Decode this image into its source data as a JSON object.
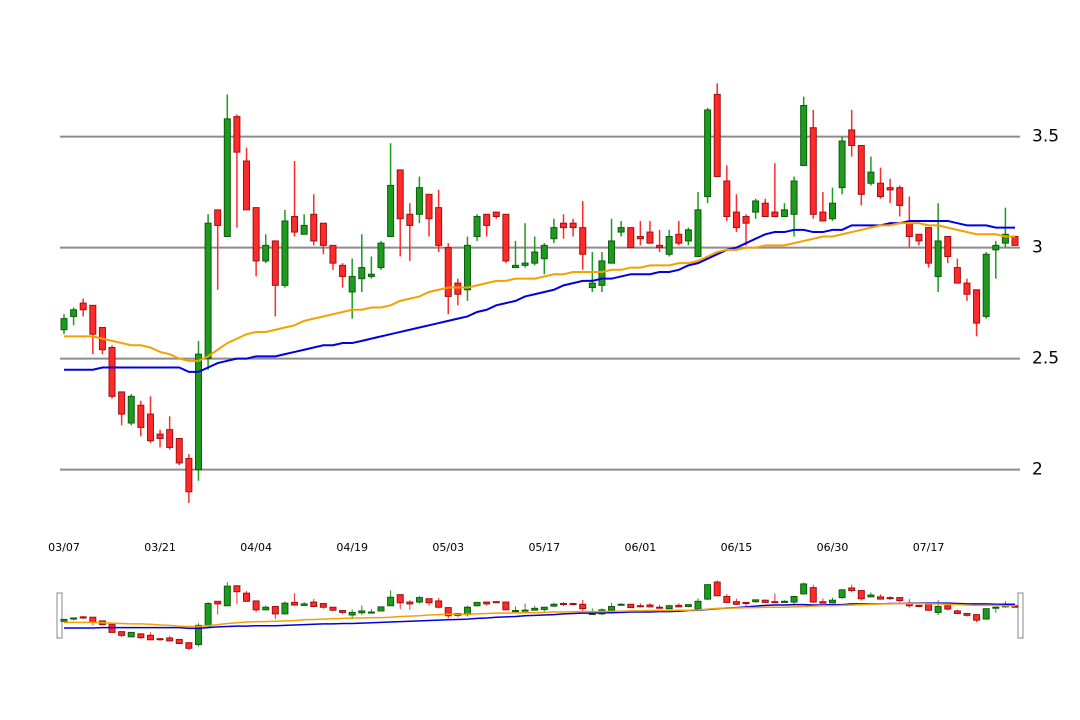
{
  "chart_data": {
    "type": "candlestick",
    "categories": [
      "03/07",
      null,
      null,
      null,
      null,
      null,
      null,
      null,
      null,
      null,
      "03/21",
      null,
      null,
      null,
      null,
      null,
      null,
      null,
      null,
      null,
      "04/04",
      null,
      null,
      null,
      null,
      null,
      null,
      null,
      null,
      null,
      "04/19",
      null,
      null,
      null,
      null,
      null,
      null,
      null,
      null,
      null,
      "05/03",
      null,
      null,
      null,
      null,
      null,
      null,
      null,
      null,
      null,
      "05/17",
      null,
      null,
      null,
      null,
      null,
      null,
      null,
      null,
      null,
      "06/01",
      null,
      null,
      null,
      null,
      null,
      null,
      null,
      null,
      null,
      "06/15",
      null,
      null,
      null,
      null,
      null,
      null,
      null,
      null,
      null,
      "06/30",
      null,
      null,
      null,
      null,
      null,
      null,
      null,
      null,
      null,
      "07/17",
      null,
      null,
      null,
      null,
      null,
      null,
      null,
      null,
      null
    ],
    "open": [
      2.63,
      2.69,
      2.75,
      2.74,
      2.64,
      2.55,
      2.35,
      2.21,
      2.29,
      2.25,
      2.16,
      2.18,
      2.14,
      2.05,
      2.0,
      2.5,
      3.17,
      3.05,
      3.59,
      3.39,
      3.18,
      2.94,
      3.03,
      2.83,
      3.14,
      3.06,
      3.15,
      3.11,
      3.01,
      2.92,
      2.8,
      2.86,
      2.87,
      2.91,
      3.05,
      3.35,
      3.15,
      3.15,
      3.24,
      3.18,
      3.0,
      2.84,
      2.81,
      3.05,
      3.15,
      3.16,
      3.15,
      2.91,
      2.92,
      2.93,
      2.95,
      3.04,
      3.11,
      3.11,
      3.09,
      2.82,
      2.83,
      2.93,
      3.07,
      3.09,
      3.05,
      3.07,
      3.01,
      2.97,
      3.06,
      3.03,
      2.96,
      3.23,
      3.69,
      3.3,
      3.16,
      3.14,
      3.16,
      3.2,
      3.16,
      3.14,
      3.15,
      3.37,
      3.54,
      3.16,
      3.13,
      3.27,
      3.53,
      3.46,
      3.29,
      3.29,
      3.27,
      3.27,
      3.11,
      3.06,
      3.09,
      2.87,
      3.05,
      2.91,
      2.84,
      2.81,
      2.69,
      2.99,
      3.02,
      3.05
    ],
    "high": [
      2.7,
      2.73,
      2.77,
      2.74,
      2.64,
      2.56,
      2.35,
      2.34,
      2.31,
      2.33,
      2.18,
      2.24,
      2.14,
      2.07,
      2.58,
      3.15,
      3.17,
      3.69,
      3.6,
      3.45,
      3.18,
      3.06,
      3.03,
      3.17,
      3.39,
      3.15,
      3.24,
      3.11,
      3.01,
      2.93,
      2.95,
      3.06,
      2.96,
      3.03,
      3.47,
      3.35,
      3.2,
      3.32,
      3.24,
      3.26,
      3.02,
      2.86,
      3.05,
      3.15,
      3.15,
      3.16,
      3.15,
      3.03,
      3.11,
      3.05,
      3.02,
      3.13,
      3.15,
      3.13,
      3.21,
      2.98,
      2.98,
      3.13,
      3.12,
      3.09,
      3.12,
      3.12,
      3.08,
      3.08,
      3.12,
      3.09,
      3.25,
      3.63,
      3.74,
      3.37,
      3.24,
      3.15,
      3.22,
      3.22,
      3.38,
      3.2,
      3.32,
      3.68,
      3.62,
      3.25,
      3.27,
      3.5,
      3.62,
      3.46,
      3.41,
      3.36,
      3.31,
      3.28,
      3.23,
      3.06,
      3.09,
      3.2,
      3.05,
      2.95,
      2.86,
      2.81,
      2.98,
      3.03,
      3.18,
      3.05
    ],
    "low": [
      2.61,
      2.65,
      2.69,
      2.52,
      2.52,
      2.32,
      2.2,
      2.2,
      2.15,
      2.12,
      2.1,
      2.09,
      2.02,
      1.85,
      1.95,
      2.45,
      2.81,
      3.05,
      3.09,
      3.17,
      2.87,
      2.93,
      2.69,
      2.82,
      3.05,
      3.06,
      3.01,
      2.97,
      2.9,
      2.82,
      2.68,
      2.8,
      2.86,
      2.9,
      3.05,
      2.96,
      2.94,
      3.11,
      3.05,
      2.98,
      2.7,
      2.74,
      2.76,
      3.03,
      3.05,
      3.13,
      2.93,
      2.91,
      2.91,
      2.92,
      2.88,
      3.02,
      3.04,
      3.05,
      2.9,
      2.8,
      2.8,
      2.93,
      3.05,
      3.0,
      3.01,
      3.02,
      2.98,
      2.96,
      3.01,
      3.01,
      2.96,
      3.2,
      3.32,
      3.12,
      3.07,
      3.01,
      3.13,
      3.14,
      3.14,
      3.14,
      3.05,
      3.37,
      3.13,
      3.12,
      3.12,
      3.24,
      3.41,
      3.19,
      3.28,
      3.22,
      3.2,
      3.14,
      3.0,
      3.01,
      2.91,
      2.8,
      2.93,
      2.84,
      2.76,
      2.6,
      2.68,
      2.86,
      3.0,
      3.01
    ],
    "close": [
      2.68,
      2.72,
      2.72,
      2.61,
      2.54,
      2.33,
      2.25,
      2.33,
      2.19,
      2.13,
      2.14,
      2.1,
      2.03,
      1.9,
      2.52,
      3.11,
      3.1,
      3.58,
      3.43,
      3.17,
      2.94,
      3.01,
      2.83,
      3.12,
      3.07,
      3.1,
      3.03,
      3.01,
      2.93,
      2.87,
      2.87,
      2.91,
      2.88,
      3.02,
      3.28,
      3.13,
      3.1,
      3.27,
      3.13,
      3.01,
      2.78,
      2.79,
      3.01,
      3.14,
      3.1,
      3.14,
      2.94,
      2.92,
      2.93,
      2.98,
      3.01,
      3.09,
      3.09,
      3.09,
      2.97,
      2.84,
      2.94,
      3.03,
      3.09,
      3.0,
      3.04,
      3.02,
      3.0,
      3.05,
      3.02,
      3.08,
      3.17,
      3.62,
      3.32,
      3.14,
      3.09,
      3.11,
      3.21,
      3.14,
      3.14,
      3.17,
      3.3,
      3.64,
      3.15,
      3.12,
      3.2,
      3.48,
      3.46,
      3.24,
      3.34,
      3.23,
      3.26,
      3.19,
      3.05,
      3.03,
      2.93,
      3.03,
      2.96,
      2.84,
      2.79,
      2.66,
      2.97,
      3.01,
      3.06,
      3.01
    ],
    "up_color": "#1e9a1e",
    "down_color": "#ff2a2a",
    "lines": [
      {
        "color": "#0000e0",
        "values": [
          2.45,
          2.45,
          2.45,
          2.45,
          2.46,
          2.46,
          2.46,
          2.46,
          2.46,
          2.46,
          2.46,
          2.46,
          2.46,
          2.44,
          2.44,
          2.46,
          2.48,
          2.49,
          2.5,
          2.5,
          2.51,
          2.51,
          2.51,
          2.52,
          2.53,
          2.54,
          2.55,
          2.56,
          2.56,
          2.57,
          2.57,
          2.58,
          2.59,
          2.6,
          2.61,
          2.62,
          2.63,
          2.64,
          2.65,
          2.66,
          2.67,
          2.68,
          2.69,
          2.71,
          2.72,
          2.74,
          2.75,
          2.76,
          2.78,
          2.79,
          2.8,
          2.81,
          2.83,
          2.84,
          2.85,
          2.85,
          2.86,
          2.86,
          2.87,
          2.88,
          2.88,
          2.88,
          2.89,
          2.89,
          2.9,
          2.92,
          2.93,
          2.95,
          2.97,
          2.99,
          3.0,
          3.02,
          3.04,
          3.06,
          3.07,
          3.07,
          3.08,
          3.08,
          3.07,
          3.07,
          3.08,
          3.08,
          3.1,
          3.1,
          3.1,
          3.1,
          3.11,
          3.11,
          3.12,
          3.12,
          3.12,
          3.12,
          3.12,
          3.11,
          3.1,
          3.1,
          3.1,
          3.09,
          3.09,
          3.09
        ]
      },
      {
        "color": "#f5a000",
        "values": [
          2.6,
          2.6,
          2.6,
          2.6,
          2.59,
          2.58,
          2.57,
          2.56,
          2.56,
          2.55,
          2.53,
          2.52,
          2.5,
          2.49,
          2.49,
          2.51,
          2.54,
          2.57,
          2.59,
          2.61,
          2.62,
          2.62,
          2.63,
          2.64,
          2.65,
          2.67,
          2.68,
          2.69,
          2.7,
          2.71,
          2.72,
          2.72,
          2.73,
          2.73,
          2.74,
          2.76,
          2.77,
          2.78,
          2.8,
          2.81,
          2.82,
          2.82,
          2.82,
          2.83,
          2.84,
          2.85,
          2.85,
          2.86,
          2.86,
          2.86,
          2.87,
          2.88,
          2.88,
          2.89,
          2.89,
          2.89,
          2.89,
          2.9,
          2.9,
          2.91,
          2.91,
          2.92,
          2.92,
          2.92,
          2.93,
          2.93,
          2.94,
          2.96,
          2.98,
          2.99,
          2.99,
          3.0,
          3.0,
          3.01,
          3.01,
          3.01,
          3.02,
          3.03,
          3.04,
          3.05,
          3.05,
          3.06,
          3.07,
          3.08,
          3.09,
          3.1,
          3.1,
          3.11,
          3.11,
          3.11,
          3.1,
          3.1,
          3.09,
          3.08,
          3.07,
          3.06,
          3.06,
          3.06,
          3.05,
          3.05
        ]
      }
    ],
    "ylim": [
      1.8,
      3.8
    ],
    "yticks": [
      2,
      2.5,
      3,
      3.5
    ],
    "grid": true,
    "grid_color": "#8c8c8c"
  }
}
